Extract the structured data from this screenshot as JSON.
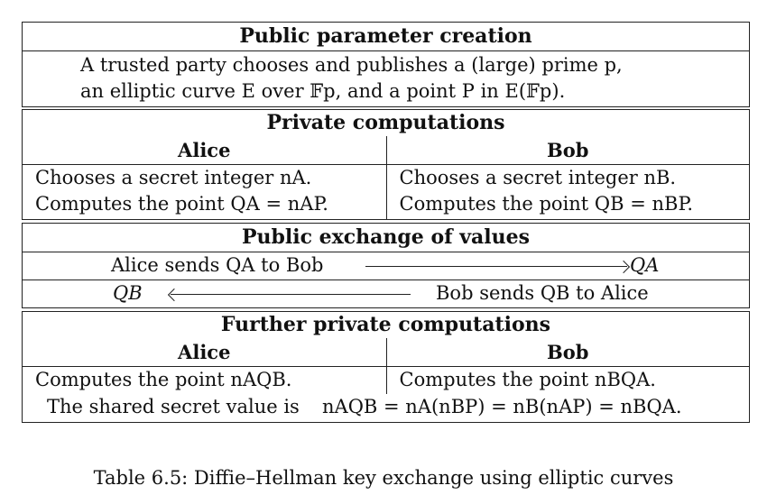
{
  "section1": {
    "header": "Public parameter creation",
    "line1": "A trusted party chooses and publishes a (large) prime p,",
    "line2": "an elliptic curve E over 𝔽p, and a point P in E(𝔽p)."
  },
  "section2": {
    "header": "Private computations",
    "alice_label": "Alice",
    "bob_label": "Bob",
    "alice_line1": "Chooses a secret integer nA.",
    "alice_line2": "Computes the point QA = nAP.",
    "bob_line1": "Chooses a secret integer nB.",
    "bob_line2": "Computes the point QB = nBP."
  },
  "section3": {
    "header": "Public exchange of values",
    "row1_text": "Alice sends QA to Bob",
    "row1_value": "QA",
    "row2_value": "QB",
    "row2_text": "Bob sends QB to Alice"
  },
  "section4": {
    "header": "Further private computations",
    "alice_label": "Alice",
    "bob_label": "Bob",
    "alice_line": "Computes the point nAQB.",
    "bob_line": "Computes the point nBQA.",
    "shared_label": "The shared secret value is",
    "shared_formula": "nAQB = nA(nBP) = nB(nAP) = nBQA."
  },
  "caption": "Table 6.5: Diffie–Hellman key exchange using elliptic curves"
}
